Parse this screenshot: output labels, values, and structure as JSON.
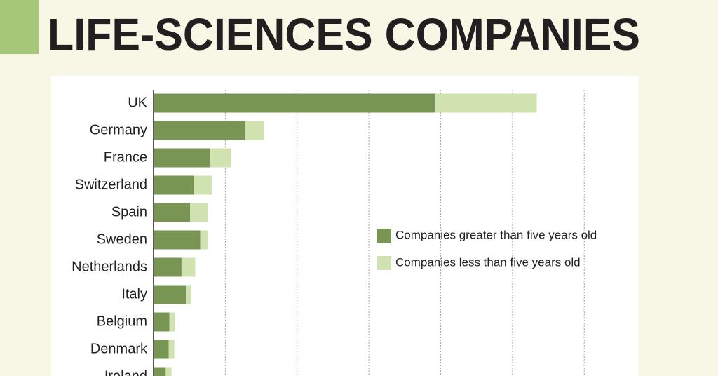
{
  "chart_data": {
    "type": "stacked-barh",
    "title": "LIFE-SCIENCES COMPANIES",
    "categories": [
      "UK",
      "Germany",
      "France",
      "Switzerland",
      "Spain",
      "Sweden",
      "Netherlands",
      "Italy",
      "Belgium",
      "Denmark",
      "Ireland"
    ],
    "series": [
      {
        "name": "Companies greater than five years old",
        "color": "#789553",
        "values": [
          392,
          128,
          79,
          56,
          51,
          65,
          39,
          45,
          22,
          21,
          17
        ]
      },
      {
        "name": "Companies less than five years old",
        "color": "#d0e2b0",
        "values": [
          142,
          26,
          29,
          25,
          25,
          11,
          19,
          7,
          8,
          8,
          8
        ]
      }
    ],
    "xlim": [
      0,
      675
    ],
    "xticks": [
      100,
      200,
      300,
      400,
      500,
      600
    ],
    "grid": true
  }
}
